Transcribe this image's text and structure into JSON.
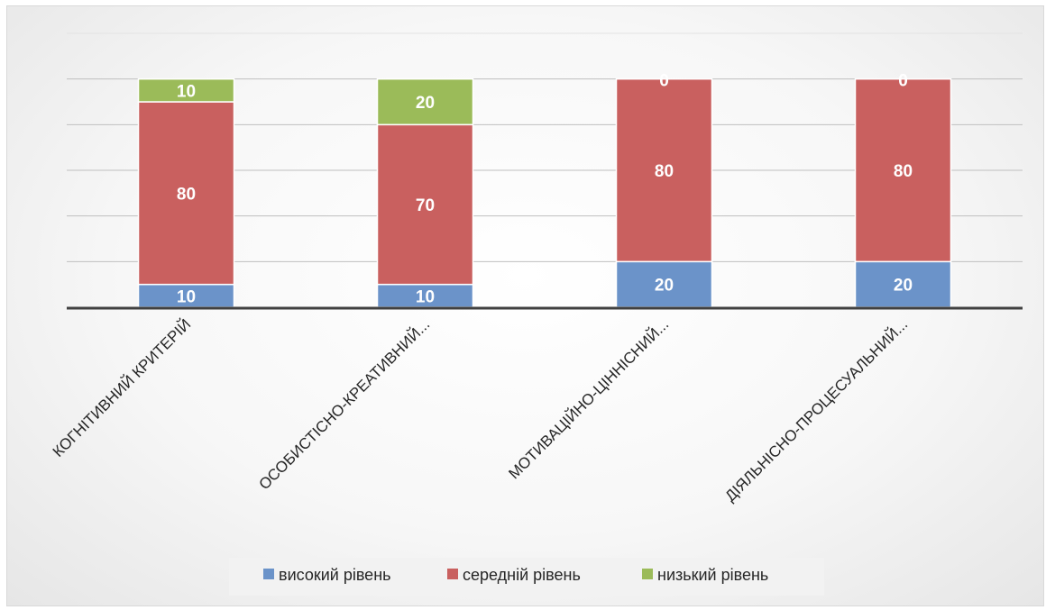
{
  "chart_data": {
    "type": "bar",
    "stacked": true,
    "categories": [
      "КОГНІТИВНИЙ КРИТЕРІЙ",
      "ОСОБИСТІСНО-КРЕАТИВНИЙ...",
      "МОТИВАЦІЙНО-ЦІННІСНИЙ...",
      "ДІЯЛЬНІСНО-ПРОЦЕСУАЛЬНИЙ..."
    ],
    "series": [
      {
        "name": "високий рівень",
        "values": [
          10,
          10,
          20,
          20
        ],
        "color": "#6b93c9"
      },
      {
        "name": "середній рівень",
        "values": [
          80,
          70,
          80,
          80
        ],
        "color": "#c9605f"
      },
      {
        "name": "низький рівень",
        "values": [
          10,
          20,
          0,
          0
        ],
        "color": "#9bbb59"
      }
    ],
    "ylim": [
      0,
      120
    ],
    "grid": true,
    "legend_position": "bottom"
  }
}
